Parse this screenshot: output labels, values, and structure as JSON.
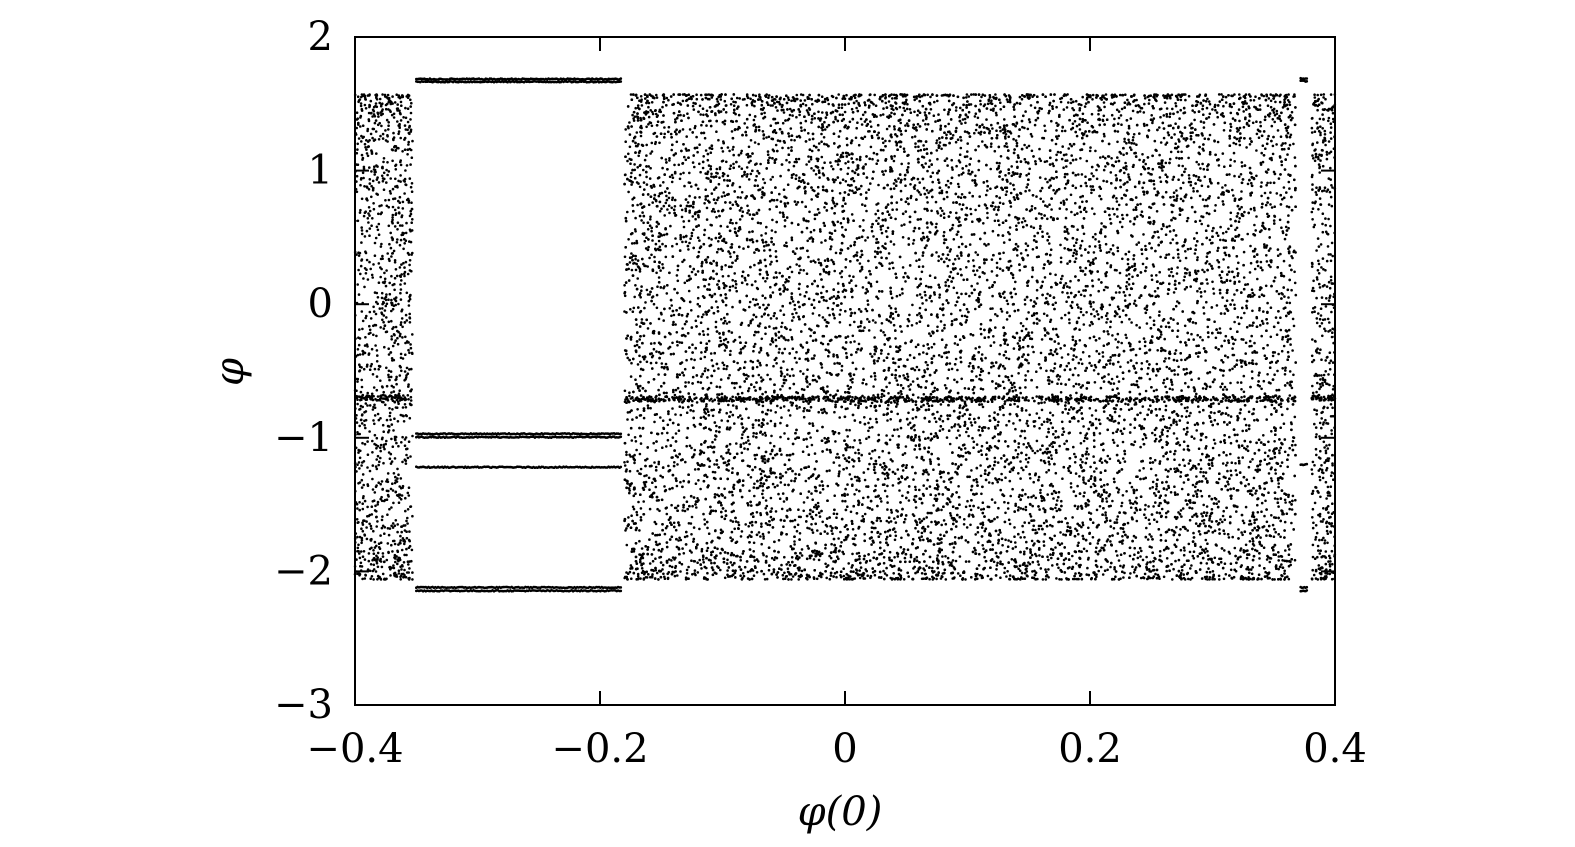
{
  "chart_data": {
    "type": "scatter",
    "title": "",
    "xlabel": "φ(0)",
    "ylabel": "φ",
    "xlim": [
      -0.4,
      0.4
    ],
    "ylim": [
      -3,
      2
    ],
    "xticks": [
      -0.4,
      -0.2,
      0,
      0.2,
      0.4
    ],
    "xtick_labels": [
      "−0.4",
      "−0.2",
      "0",
      "0.2",
      "0.4"
    ],
    "yticks": [
      -3,
      -2,
      -1,
      0,
      1,
      2
    ],
    "ytick_labels": [
      "−3",
      "−2",
      "−1",
      "0",
      "1",
      "2"
    ],
    "grid": false,
    "legend": "none",
    "point_color": "#000000",
    "chaotic_bands": [
      {
        "x_range": [
          -0.4,
          -0.353
        ],
        "y_range": [
          -2.06,
          1.57
        ],
        "dense_line_y": -0.7
      },
      {
        "x_range": [
          -0.18,
          0.368
        ],
        "y_range": [
          -2.06,
          1.57
        ],
        "dense_line_y": -0.71
      },
      {
        "x_range": [
          0.381,
          0.4
        ],
        "y_range": [
          -2.06,
          1.57
        ],
        "dense_line_y": -0.7
      }
    ],
    "periodic_windows": [
      {
        "x_range": [
          -0.35,
          -0.183
        ],
        "y_values": [
          1.685,
          1.665,
          -0.97,
          -0.995,
          -1.22,
          -2.12,
          -2.145
        ]
      },
      {
        "x_range": [
          0.372,
          0.377
        ],
        "y_values": [
          1.69,
          1.67,
          -1.2,
          -2.12,
          -2.145
        ]
      }
    ]
  }
}
